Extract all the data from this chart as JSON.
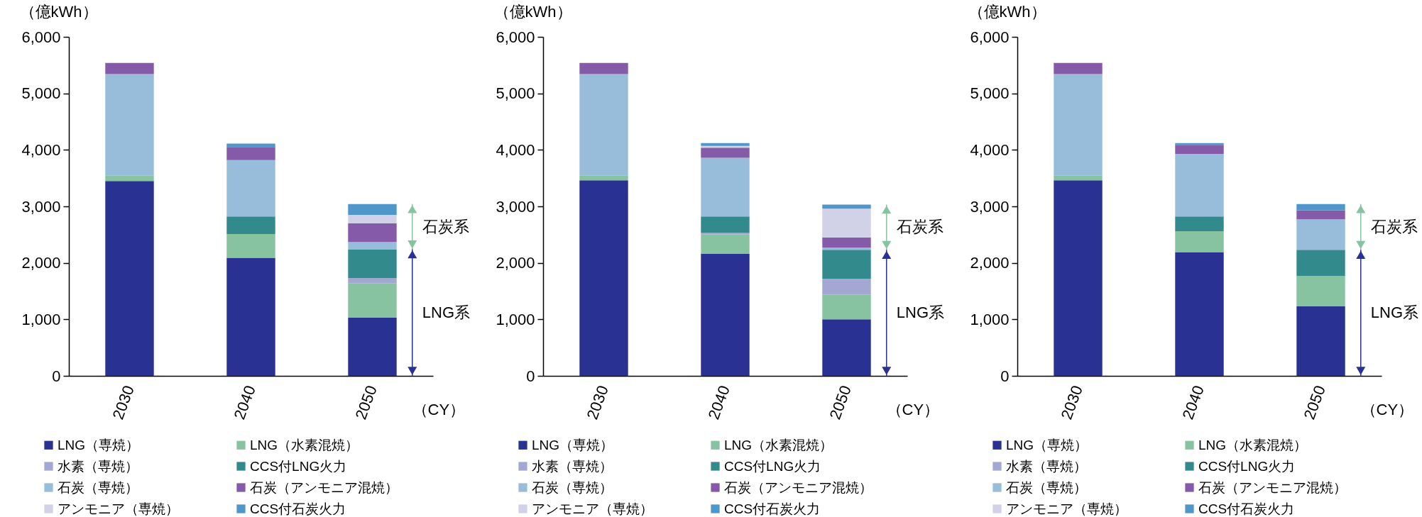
{
  "chart_data": [
    {
      "type": "bar",
      "stacked": true,
      "ylabel": "（億kWh）",
      "xlabel": "（CY）",
      "categories": [
        "2030",
        "2040",
        "2050"
      ],
      "series": [
        {
          "name": "LNG（専焼）",
          "color": "#293292",
          "values": [
            3450,
            2090,
            1030
          ]
        },
        {
          "name": "LNG（水素混焼）",
          "color": "#87c3a1",
          "values": [
            100,
            420,
            610
          ]
        },
        {
          "name": "水素（専焼）",
          "color": "#a3a7d1",
          "values": [
            0,
            0,
            90
          ]
        },
        {
          "name": "CCS付LNG火力",
          "color": "#328a8c",
          "values": [
            0,
            310,
            510
          ]
        },
        {
          "name": "石炭（専焼）",
          "color": "#97bddb",
          "values": [
            1790,
            1000,
            130
          ]
        },
        {
          "name": "石炭（アンモニア混焼）",
          "color": "#855aa8",
          "values": [
            200,
            230,
            330
          ]
        },
        {
          "name": "アンモニア（専焼）",
          "color": "#d1d2e7",
          "values": [
            0,
            0,
            150
          ]
        },
        {
          "name": "CCS付石炭火力",
          "color": "#4f96ca",
          "values": [
            0,
            60,
            190
          ]
        }
      ],
      "ylim": [
        0,
        6000
      ],
      "yticks": [
        0,
        {
          "value": 1000,
          "label": "1,000"
        },
        {
          "value": 2000,
          "label": "2,000"
        },
        {
          "value": 3000,
          "label": "3,000"
        },
        {
          "value": 4000,
          "label": "4,000"
        },
        {
          "value": 5000,
          "label": "5,000"
        },
        {
          "value": 6000,
          "label": "6,000"
        }
      ],
      "annotations": [
        "石炭系",
        "LNG系"
      ],
      "legend": "bottom",
      "grid": false
    },
    {
      "type": "bar",
      "stacked": true,
      "ylabel": "（億kWh）",
      "xlabel": "（CY）",
      "categories": [
        "2030",
        "2040",
        "2050"
      ],
      "series": [
        {
          "name": "LNG（専焼）",
          "color": "#293292",
          "values": [
            3460,
            2160,
            1000
          ]
        },
        {
          "name": "LNG（水素混焼）",
          "color": "#87c3a1",
          "values": [
            90,
            340,
            440
          ]
        },
        {
          "name": "水素（専焼）",
          "color": "#a3a7d1",
          "values": [
            0,
            30,
            280
          ]
        },
        {
          "name": "CCS付LNG火力",
          "color": "#328a8c",
          "values": [
            0,
            290,
            510
          ]
        },
        {
          "name": "石炭（専焼）",
          "color": "#97bddb",
          "values": [
            1790,
            1040,
            40
          ]
        },
        {
          "name": "石炭（アンモニア混焼）",
          "color": "#855aa8",
          "values": [
            200,
            180,
            180
          ]
        },
        {
          "name": "アンモニア（専焼）",
          "color": "#d1d2e7",
          "values": [
            0,
            30,
            510
          ]
        },
        {
          "name": "CCS付石炭火力",
          "color": "#4f96ca",
          "values": [
            0,
            50,
            70
          ]
        }
      ],
      "ylim": [
        0,
        6000
      ],
      "yticks": [
        0,
        {
          "value": 1000,
          "label": "1,000"
        },
        {
          "value": 2000,
          "label": "2,000"
        },
        {
          "value": 3000,
          "label": "3,000"
        },
        {
          "value": 4000,
          "label": "4,000"
        },
        {
          "value": 5000,
          "label": "5,000"
        },
        {
          "value": 6000,
          "label": "6,000"
        }
      ],
      "annotations": [
        "石炭系",
        "LNG系"
      ],
      "legend": "bottom",
      "grid": false
    },
    {
      "type": "bar",
      "stacked": true,
      "ylabel": "（億kWh）",
      "xlabel": "（CY）",
      "categories": [
        "2030",
        "2040",
        "2050"
      ],
      "series": [
        {
          "name": "LNG（専焼）",
          "color": "#293292",
          "values": [
            3460,
            2190,
            1230
          ]
        },
        {
          "name": "LNG（水素混焼）",
          "color": "#87c3a1",
          "values": [
            90,
            370,
            540
          ]
        },
        {
          "name": "水素（専焼）",
          "color": "#a3a7d1",
          "values": [
            0,
            0,
            0
          ]
        },
        {
          "name": "CCS付LNG火力",
          "color": "#328a8c",
          "values": [
            0,
            260,
            460
          ]
        },
        {
          "name": "石炭（専焼）",
          "color": "#97bddb",
          "values": [
            1790,
            1110,
            540
          ]
        },
        {
          "name": "石炭（アンモニア混焼）",
          "color": "#855aa8",
          "values": [
            200,
            160,
            160
          ]
        },
        {
          "name": "アンモニア（専焼）",
          "color": "#d1d2e7",
          "values": [
            0,
            0,
            0
          ]
        },
        {
          "name": "CCS付石炭火力",
          "color": "#4f96ca",
          "values": [
            0,
            30,
            110
          ]
        }
      ],
      "ylim": [
        0,
        6000
      ],
      "yticks": [
        0,
        {
          "value": 1000,
          "label": "1,000"
        },
        {
          "value": 2000,
          "label": "2,000"
        },
        {
          "value": 3000,
          "label": "3,000"
        },
        {
          "value": 4000,
          "label": "4,000"
        },
        {
          "value": 5000,
          "label": "5,000"
        },
        {
          "value": 6000,
          "label": "6,000"
        }
      ],
      "annotations": [
        "石炭系",
        "LNG系"
      ],
      "legend": "bottom",
      "grid": false
    }
  ]
}
